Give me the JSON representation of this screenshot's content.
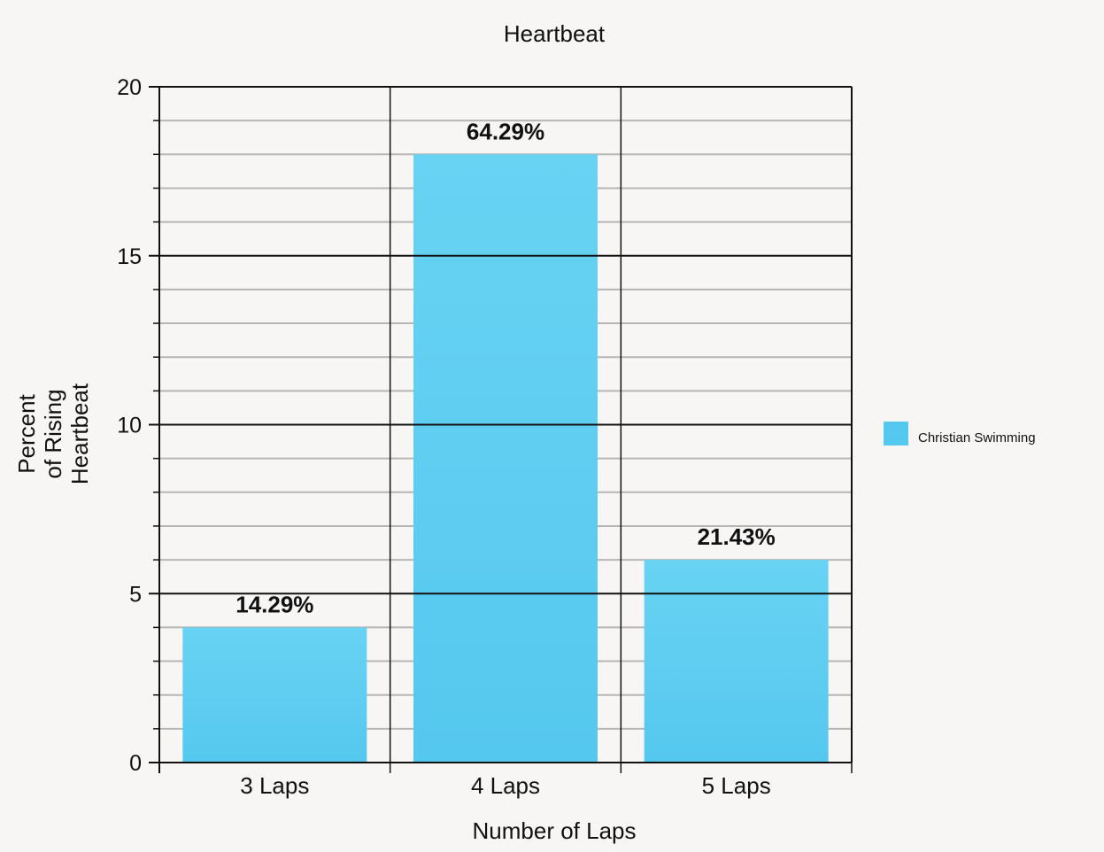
{
  "chart_data": {
    "type": "bar",
    "title": "Heartbeat",
    "xlabel": "Number of Laps",
    "ylabel_lines": [
      "Percent",
      "of Rising",
      "Heartbeat"
    ],
    "categories": [
      "3 Laps",
      "4 Laps",
      "5 Laps"
    ],
    "series": [
      {
        "name": "Christian Swimming",
        "values": [
          4,
          18,
          6
        ],
        "data_labels": [
          "14.29%",
          "64.29%",
          "21.43%"
        ]
      }
    ],
    "ylim": [
      0,
      20
    ],
    "yticks": [
      0,
      5,
      10,
      15,
      20
    ],
    "minor_tick_step": 1,
    "grid": true,
    "legend_position": "right",
    "colors": {
      "bar": "#62d0f2",
      "bar_dark": "#52c6ee",
      "major_grid": "#111111",
      "minor_grid": "#b9b5b2",
      "background": "#f7f6f5"
    }
  }
}
